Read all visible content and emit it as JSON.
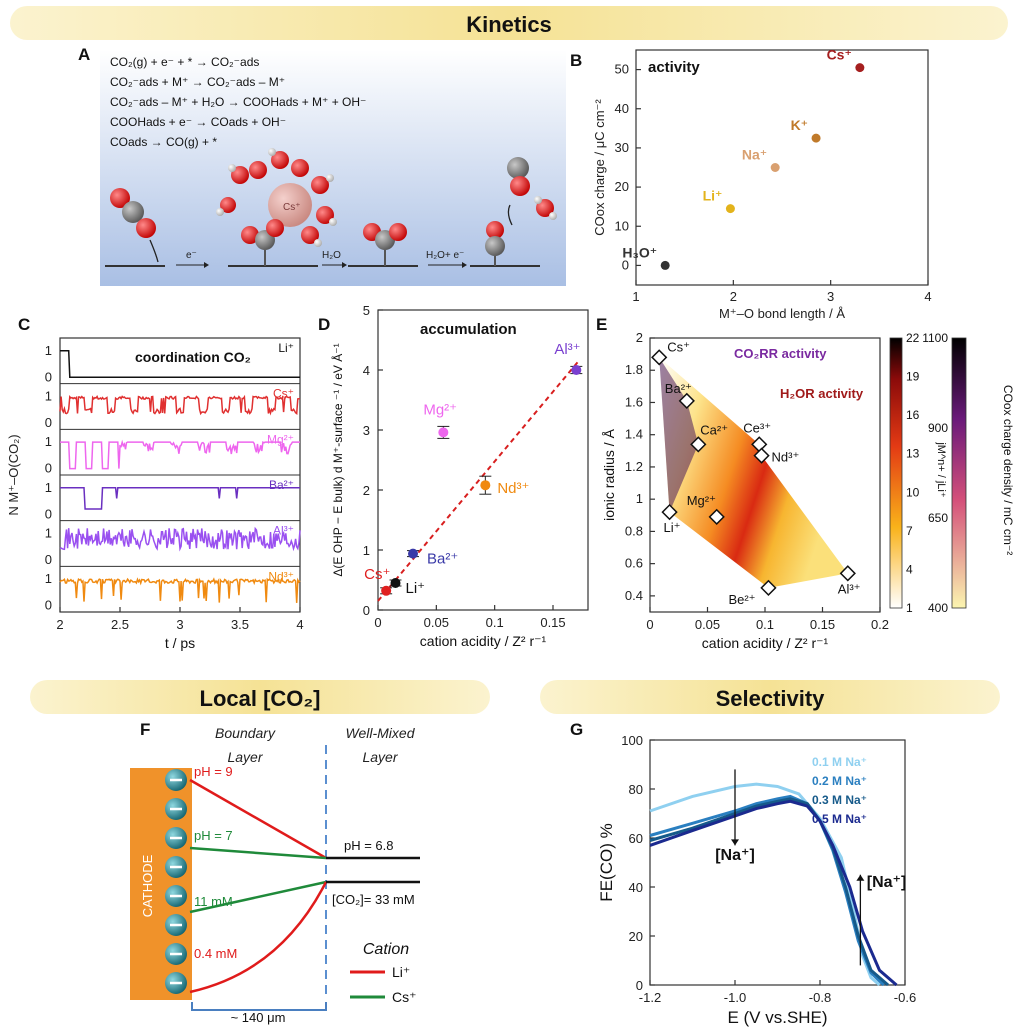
{
  "headers": {
    "kinetics": "Kinetics",
    "local": "Local [CO₂]",
    "selectivity": "Selectivity"
  },
  "panels": {
    "A": "A",
    "B": "B",
    "C": "C",
    "D": "D",
    "E": "E",
    "F": "F",
    "G": "G"
  },
  "colors": {
    "header_bg": "#f6e7a3",
    "water_top": "#ffffff",
    "water_bottom": "#b7c9e6",
    "cathode": "#f0922a",
    "li_line": "#e01b1b",
    "cs_line": "#1f8a3a"
  },
  "panelA": {
    "equations": [
      "CO₂(g) + e⁻ + * → CO₂⁻ads",
      "CO₂⁻ads + M⁺ → CO₂⁻ads – M⁺",
      "CO₂⁻ads – M⁺ + H₂O → COOHads + M⁺ + OH⁻",
      "COOHads + e⁻ → COads + OH⁻",
      "COads → CO(g) + *"
    ],
    "arrow_labels": [
      "e⁻",
      "H₂O",
      "H₂O+ e⁻"
    ],
    "cation_label": "Cs⁺"
  },
  "chart_data": [
    {
      "id": "B",
      "type": "scatter",
      "title": "activity",
      "xlabel": "M⁺–O bond length / Å",
      "ylabel": "COox charge / μC cm⁻²",
      "xlim": [
        1,
        4
      ],
      "ylim": [
        -5,
        55
      ],
      "xticks": [
        1,
        2,
        3,
        4
      ],
      "yticks": [
        0,
        10,
        20,
        30,
        40,
        50
      ],
      "points": [
        {
          "label": "H₃O⁺",
          "x": 1.3,
          "y": 0,
          "color": "#333333"
        },
        {
          "label": "Li⁺",
          "x": 1.97,
          "y": 14.5,
          "color": "#e3b31b"
        },
        {
          "label": "Na⁺",
          "x": 2.43,
          "y": 25,
          "color": "#d9a070"
        },
        {
          "label": "K⁺",
          "x": 2.85,
          "y": 32.5,
          "color": "#c07a2a"
        },
        {
          "label": "Cs⁺",
          "x": 3.3,
          "y": 50.5,
          "color": "#a51f1f"
        }
      ]
    },
    {
      "id": "C",
      "type": "line",
      "title": "coordination CO₂",
      "xlabel": "t / ps",
      "ylabel": "N M⁺–O(CO₂)",
      "xlim": [
        2,
        4
      ],
      "xticks": [
        "2",
        "2.5",
        "3",
        "3.5",
        "4"
      ],
      "series": [
        {
          "name": "Li⁺",
          "color": "#111111"
        },
        {
          "name": "Cs⁺",
          "color": "#e03030"
        },
        {
          "name": "Mg²⁺",
          "color": "#ee66ee"
        },
        {
          "name": "Ba²⁺",
          "color": "#6a2fc0"
        },
        {
          "name": "Al³⁺",
          "color": "#9a50f0"
        },
        {
          "name": "Nd³⁺",
          "color": "#f08a10"
        }
      ],
      "row_ticks": [
        "0",
        "1"
      ]
    },
    {
      "id": "D",
      "type": "scatter",
      "title": "accumulation",
      "xlabel": "cation acidity / Z² r⁻¹",
      "ylabel": "Δ(E OHP − E bulk) d M⁺-surface ⁻¹ / eV Å⁻¹",
      "xlim": [
        0,
        0.18
      ],
      "ylim": [
        0,
        5
      ],
      "xticks": [
        "0",
        "0.05",
        "0.1",
        "0.15"
      ],
      "yticks": [
        "0",
        "1",
        "2",
        "3",
        "4",
        "5"
      ],
      "points": [
        {
          "label": "Cs⁺",
          "x": 0.007,
          "y": 0.32,
          "err": 0.05,
          "color": "#e02020"
        },
        {
          "label": "Li⁺",
          "x": 0.015,
          "y": 0.45,
          "err": 0.05,
          "color": "#111111"
        },
        {
          "label": "Ba²⁺",
          "x": 0.03,
          "y": 0.94,
          "err": 0.05,
          "color": "#3a3aa8"
        },
        {
          "label": "Mg²⁺",
          "x": 0.056,
          "y": 2.96,
          "err": 0.1,
          "color": "#ee66ee"
        },
        {
          "label": "Nd³⁺",
          "x": 0.092,
          "y": 2.08,
          "err": 0.15,
          "color": "#f08a10"
        },
        {
          "label": "Al³⁺",
          "x": 0.17,
          "y": 4.0,
          "err": 0.06,
          "color": "#7a40d0"
        }
      ],
      "fit": {
        "x": [
          0,
          0.172
        ],
        "y": [
          0.15,
          4.15
        ],
        "color": "#d81f1f"
      }
    },
    {
      "id": "E",
      "type": "scatter",
      "xlabel": "cation acidity / Z² r⁻¹",
      "ylabel": "ionic radius / Å",
      "xlim": [
        0,
        0.2
      ],
      "ylim": [
        0.3,
        2.0
      ],
      "xticks": [
        "0",
        "0.05",
        "0.1",
        "0.15",
        "0.2"
      ],
      "yticks": [
        "0.4",
        "0.6",
        "0.8",
        "1",
        "1.2",
        "1.4",
        "1.6",
        "1.8",
        "2"
      ],
      "annotations": [
        "CO₂RR activity",
        "H₂OR activity"
      ],
      "points": [
        {
          "label": "Cs⁺",
          "x": 0.008,
          "y": 1.88
        },
        {
          "label": "Ba²⁺",
          "x": 0.032,
          "y": 1.61
        },
        {
          "label": "Ca²⁺",
          "x": 0.042,
          "y": 1.34
        },
        {
          "label": "Ce³⁺",
          "x": 0.095,
          "y": 1.34
        },
        {
          "label": "Nd³⁺",
          "x": 0.097,
          "y": 1.27
        },
        {
          "label": "Mg²⁺",
          "x": 0.058,
          "y": 0.89
        },
        {
          "label": "Li⁺",
          "x": 0.017,
          "y": 0.92
        },
        {
          "label": "Be²⁺",
          "x": 0.103,
          "y": 0.45
        },
        {
          "label": "Al³⁺",
          "x": 0.172,
          "y": 0.54
        }
      ],
      "colorbar1": {
        "label": "jM^n+ / jLi⁺",
        "ticks": [
          "22",
          "19",
          "16",
          "13",
          "10",
          "7",
          "4",
          "1"
        ]
      },
      "colorbar2": {
        "label": "COox charge density / mC cm⁻²",
        "ticks": [
          "1100",
          "900",
          "650",
          "400"
        ]
      }
    },
    {
      "id": "G",
      "type": "line",
      "xlabel": "E (V vs.SHE)",
      "ylabel": "FE(CO) %",
      "xlim": [
        -1.2,
        -0.6
      ],
      "ylim": [
        0,
        100
      ],
      "xticks": [
        "-1.2",
        "-1.0",
        "-0.8",
        "-0.6"
      ],
      "yticks": [
        "0",
        "20",
        "40",
        "60",
        "80",
        "100"
      ],
      "series": [
        {
          "name": "0.1 M Na⁺",
          "color": "#8fd0f0",
          "x": [
            -1.2,
            -1.1,
            -1.0,
            -0.95,
            -0.9,
            -0.85,
            -0.8,
            -0.75,
            -0.72,
            -0.7,
            -0.68,
            -0.66
          ],
          "y": [
            71,
            77,
            81,
            82,
            81,
            78,
            68,
            52,
            30,
            12,
            3,
            0
          ]
        },
        {
          "name": "0.2 M Na⁺",
          "color": "#2a7fc0",
          "x": [
            -1.2,
            -1.1,
            -1.0,
            -0.95,
            -0.9,
            -0.87,
            -0.83,
            -0.8,
            -0.77,
            -0.74,
            -0.71,
            -0.68,
            -0.65
          ],
          "y": [
            61,
            66,
            71,
            74,
            76,
            77,
            74,
            67,
            55,
            38,
            18,
            5,
            0
          ]
        },
        {
          "name": "0.3 M Na⁺",
          "color": "#165a8a",
          "x": [
            -1.2,
            -1.1,
            -1.0,
            -0.95,
            -0.9,
            -0.87,
            -0.83,
            -0.8,
            -0.77,
            -0.74,
            -0.71,
            -0.68,
            -0.64
          ],
          "y": [
            59,
            64,
            70,
            73,
            75,
            76,
            74,
            67,
            56,
            40,
            20,
            6,
            0
          ]
        },
        {
          "name": "0.5 M Na⁺",
          "color": "#1b2a8f",
          "x": [
            -1.2,
            -1.1,
            -1.0,
            -0.95,
            -0.9,
            -0.87,
            -0.83,
            -0.8,
            -0.77,
            -0.73,
            -0.7,
            -0.66,
            -0.62
          ],
          "y": [
            57,
            63,
            69,
            72,
            74,
            75,
            73,
            67,
            57,
            40,
            22,
            6,
            0
          ]
        }
      ],
      "annotations": [
        "[Na⁺]",
        "[Na⁺]"
      ]
    }
  ],
  "panelF": {
    "boundary": "Boundary Layer",
    "wellmixed": "Well-Mixed Layer",
    "cathode": "CATHODE",
    "ph9": "pH = 9",
    "ph7": "pH = 7",
    "ph68": "pH = 6.8",
    "c11": "11 mM",
    "c04": "0.4 mM",
    "cbulk": "[CO₂]= 33 mM",
    "legend_title": "Cation",
    "li": "Li⁺",
    "cs": "Cs⁺",
    "width": "~ 140 μm"
  }
}
